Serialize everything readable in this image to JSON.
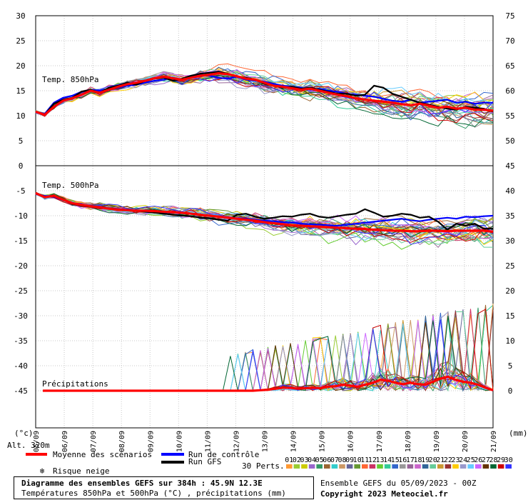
{
  "chart_data": {
    "type": "line",
    "left_axis": {
      "ticks": [
        "30",
        "25",
        "20",
        "15",
        "10",
        "5",
        "0",
        "-5",
        "-10",
        "-15",
        "-20",
        "-25",
        "-30",
        "-35",
        "-40",
        "-45"
      ],
      "unit_label": "(°c)"
    },
    "right_axis": {
      "ticks": [
        "75",
        "70",
        "65",
        "60",
        "55",
        "50",
        "45",
        "40",
        "35",
        "30",
        "25",
        "20",
        "15",
        "10",
        "5",
        "0"
      ],
      "unit_label": "(mm)"
    },
    "x_ticks": [
      "05/09",
      "06/09",
      "07/09",
      "08/09",
      "09/09",
      "10/09",
      "11/09",
      "12/09",
      "13/09",
      "14/09",
      "15/09",
      "16/09",
      "17/09",
      "18/09",
      "19/09",
      "20/09",
      "21/09"
    ],
    "panels": [
      {
        "label": "Temp. 850hPa"
      },
      {
        "label": "Temp. 500hPa"
      },
      {
        "label": "Précipitations"
      }
    ],
    "mean_850": [
      10.8,
      10.2,
      11.8,
      13,
      13.5,
      14.2,
      15,
      14.6,
      15.2,
      15.8,
      16.3,
      16.6,
      17,
      17.5,
      17.8,
      17.5,
      17.2,
      17.6,
      18,
      18.2,
      18.5,
      18.3,
      17.9,
      17.4,
      17.2,
      16.6,
      16,
      15.8,
      15.5,
      15.2,
      15.4,
      15,
      14.6,
      14.2,
      13.9,
      13.5,
      13.2,
      13,
      12.8,
      12.6,
      12.3,
      12.1,
      12.4,
      12,
      11.6,
      11.8,
      11.4,
      11.6,
      11.2,
      11.2,
      11
    ],
    "mean_500": [
      -5.5,
      -6.3,
      -6,
      -6.8,
      -7.5,
      -7.8,
      -8.1,
      -8.3,
      -8.6,
      -8.8,
      -8.9,
      -9,
      -9,
      -9.1,
      -9.2,
      -9.3,
      -9.4,
      -9.6,
      -9.8,
      -10,
      -10.2,
      -10.4,
      -10.6,
      -10.8,
      -11,
      -11.3,
      -11.5,
      -11.7,
      -11.9,
      -12,
      -12.1,
      -12.2,
      -12.3,
      -12.4,
      -12.5,
      -12.6,
      -12.7,
      -12.8,
      -12.9,
      -13,
      -13,
      -13.1,
      -13.1,
      -13,
      -13,
      -13.1,
      -13,
      -13,
      -13,
      -13,
      -13.2
    ],
    "mean_precip": [
      0,
      0,
      0,
      0,
      0,
      0,
      0,
      0,
      0,
      0,
      0,
      0,
      0,
      0,
      0,
      0,
      0,
      0,
      0,
      0,
      0,
      0,
      0,
      0,
      0,
      0,
      0,
      0,
      0,
      0.1,
      0.2,
      0.4,
      0.6,
      0.6,
      0.4,
      0.5,
      0.6,
      0.5,
      0.8,
      0.9,
      1.2,
      1,
      0.8,
      1.2,
      1.6,
      2.2,
      2,
      1.6,
      1.3,
      1.6,
      1.3,
      1.2,
      1.8,
      2.4,
      2.8,
      2.2,
      1.8,
      1.6,
      1.2,
      0.6,
      0.1
    ],
    "control_850": [
      10.8,
      10.4,
      12.6,
      13.6,
      14,
      14.8,
      15.2,
      15,
      15.4,
      15.6,
      16,
      16.2,
      16.6,
      17,
      17.2,
      17.6,
      17.2,
      17.8,
      18.2,
      18,
      17.6,
      17.4,
      17.8,
      17.2,
      17,
      16.8,
      16.4,
      16,
      15.8,
      15.6,
      15.2,
      15.4,
      15,
      14.8,
      14.4,
      14.2,
      14,
      13.8,
      13.4,
      13,
      12.8,
      13.2,
      12.6,
      12.8,
      13,
      13.2,
      12.6,
      12.8,
      12.4,
      12.6,
      12.6
    ],
    "gfs_850": [
      10.8,
      10.2,
      12.4,
      13.2,
      13.6,
      14.8,
      15.2,
      14.6,
      15.6,
      16,
      16.6,
      16.2,
      17,
      17.4,
      17.6,
      17,
      17.4,
      18,
      18.4,
      18.6,
      18.8,
      18.4,
      17.8,
      17.6,
      17.2,
      16.4,
      16,
      15.6,
      15.8,
      15.4,
      15.6,
      15.2,
      14.8,
      14.4,
      14.4,
      14,
      14.2,
      16,
      15.6,
      14.4,
      13.8,
      13.2,
      12.6,
      12.2,
      11.8,
      11.4,
      11.2,
      11.8,
      11.6,
      11.4,
      10.8
    ],
    "control_500": [
      -5.5,
      -6.1,
      -6.2,
      -6.9,
      -7.4,
      -7.8,
      -8,
      -8.2,
      -8.5,
      -8.7,
      -8.8,
      -9,
      -9.1,
      -9.2,
      -9.3,
      -9.4,
      -9.5,
      -9.6,
      -9.8,
      -10,
      -10.1,
      -10.3,
      -10.5,
      -10.6,
      -10.8,
      -11,
      -11.1,
      -11.3,
      -11.4,
      -11.6,
      -11.7,
      -11.8,
      -11.9,
      -12,
      -11.8,
      -11.6,
      -11.4,
      -11.2,
      -11,
      -10.8,
      -10.6,
      -10.9,
      -11.1,
      -10.8,
      -10.6,
      -10.4,
      -10.6,
      -10.2,
      -10.3,
      -10.1,
      -10
    ],
    "gfs_500": [
      -5.5,
      -6.2,
      -6.1,
      -6.8,
      -7.6,
      -7.9,
      -8.2,
      -8.4,
      -8.6,
      -8.8,
      -8.8,
      -9,
      -9.2,
      -9.4,
      -9.6,
      -9.8,
      -10,
      -10.1,
      -10.4,
      -10.5,
      -10.8,
      -11,
      -9.8,
      -9.6,
      -10.2,
      -10.6,
      -10.4,
      -10.1,
      -10.2,
      -9.8,
      -9.6,
      -10.2,
      -10.4,
      -10.1,
      -9.8,
      -9.6,
      -8.7,
      -9.4,
      -10.2,
      -10,
      -9.6,
      -9.8,
      -10.4,
      -10.2,
      -11.2,
      -12.8,
      -11.6,
      -12,
      -11.6,
      -12.6,
      -12.6
    ]
  },
  "legend": {
    "mean_label": "Moyenne des scénarios",
    "mean_color": "#ff0000",
    "control_label": "Run de contrôle",
    "control_color": "#0000ff",
    "gfs_label": "Run GFS",
    "gfs_color": "#000000",
    "snow_label": "Risque neige",
    "snow_icon": "snowflake-icon",
    "alt_label": "Alt. 320m",
    "perts_label": "30 Perts.",
    "pert_numbers": [
      "01",
      "02",
      "03",
      "04",
      "05",
      "06",
      "07",
      "08",
      "09",
      "10",
      "11",
      "12",
      "13",
      "14",
      "15",
      "16",
      "17",
      "18",
      "19",
      "20",
      "21",
      "22",
      "23",
      "24",
      "25",
      "26",
      "27",
      "28",
      "29",
      "30"
    ],
    "pert_colors": [
      "#ff9933",
      "#99cc33",
      "#cccc00",
      "#9966cc",
      "#339966",
      "#996633",
      "#33cccc",
      "#cc9966",
      "#666699",
      "#669933",
      "#ff6633",
      "#cc3366",
      "#66cc33",
      "#33cc99",
      "#3366cc",
      "#999999",
      "#996699",
      "#cc66cc",
      "#336699",
      "#66cc99",
      "#cc9933",
      "#993333",
      "#ffcc00",
      "#9999cc",
      "#66ccff",
      "#cc66ff",
      "#663300",
      "#006633",
      "#cc0000",
      "#3333ff"
    ]
  },
  "footer": {
    "title": "Diagramme des ensembles GEFS sur 384h : 45.9N 12.3E",
    "subtitle": "Températures 850hPa et 500hPa (°C) , précipitations (mm)",
    "run_label": "Ensemble GEFS du 05/09/2023 - 00Z",
    "copyright": "Copyright 2023 Meteociel.fr"
  }
}
